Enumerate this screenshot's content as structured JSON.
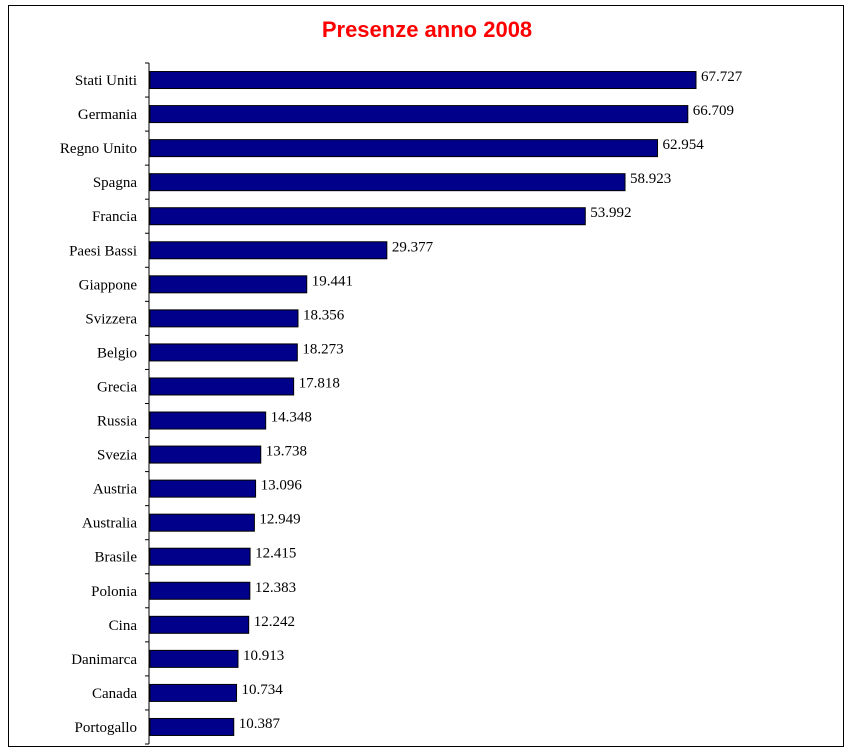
{
  "chart_data": {
    "type": "bar",
    "orientation": "horizontal",
    "title": "Presenze anno 2008",
    "title_color": "#ff0000",
    "bar_color": "#00008b",
    "xlim": [
      0,
      80
    ],
    "categories": [
      "Stati Uniti",
      "Germania",
      "Regno Unito",
      "Spagna",
      "Francia",
      "Paesi Bassi",
      "Giappone",
      "Svizzera",
      "Belgio",
      "Grecia",
      "Russia",
      "Svezia",
      "Austria",
      "Australia",
      "Brasile",
      "Polonia",
      "Cina",
      "Danimarca",
      "Canada",
      "Portogallo"
    ],
    "values": [
      67.727,
      66.709,
      62.954,
      58.923,
      53.992,
      29.377,
      19.441,
      18.356,
      18.273,
      17.818,
      14.348,
      13.738,
      13.096,
      12.949,
      12.415,
      12.383,
      12.242,
      10.913,
      10.734,
      10.387
    ],
    "value_labels": [
      "67.727",
      "66.709",
      "62.954",
      "58.923",
      "53.992",
      "29.377",
      "19.441",
      "18.356",
      "18.273",
      "17.818",
      "14.348",
      "13.738",
      "13.096",
      "12.949",
      "12.415",
      "12.383",
      "12.242",
      "10.913",
      "10.734",
      "10.387"
    ]
  }
}
